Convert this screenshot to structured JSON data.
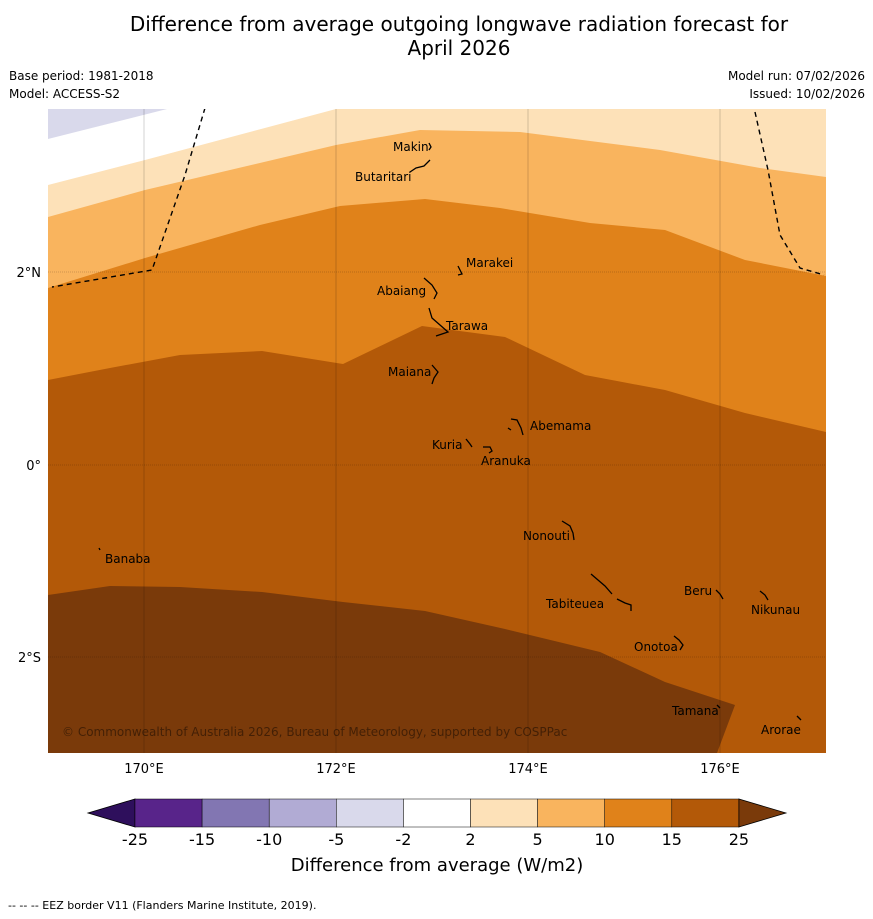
{
  "title_line1": "Difference from average outgoing longwave radiation forecast for",
  "title_line2": "April 2026",
  "base_period": "Base period: 1981-2018",
  "model": "Model: ACCESS-S2",
  "model_run": "Model run: 07/02/2026",
  "issued": "Issued: 10/02/2026",
  "copyright": "© Commonwealth of Australia 2026, Bureau of Meteorology, supported by COSPPac",
  "footnote": "-- -- -- EEZ border V11 (Flanders Marine Institute, 2019).",
  "axes": {
    "lon_labels": [
      "170°E",
      "172°E",
      "174°E",
      "176°E"
    ],
    "lat_labels": [
      "2°N",
      "0°",
      "2°S"
    ]
  },
  "places": [
    {
      "name": "Makin"
    },
    {
      "name": "Butaritari"
    },
    {
      "name": "Marakei"
    },
    {
      "name": "Abaiang"
    },
    {
      "name": "Tarawa"
    },
    {
      "name": "Maiana"
    },
    {
      "name": "Abemama"
    },
    {
      "name": "Kuria"
    },
    {
      "name": "Aranuka"
    },
    {
      "name": "Nonouti"
    },
    {
      "name": "Banaba"
    },
    {
      "name": "Beru"
    },
    {
      "name": "Tabiteuea"
    },
    {
      "name": "Nikunau"
    },
    {
      "name": "Onotoa"
    },
    {
      "name": "Tamana"
    },
    {
      "name": "Arorae"
    }
  ],
  "legend": {
    "title": "Difference from average (W/m2)",
    "ticks": [
      "-25",
      "-15",
      "-10",
      "-5",
      "-2",
      "2",
      "5",
      "10",
      "15",
      "25"
    ],
    "colors": [
      "#2e0f5c",
      "#58248a",
      "#8276b2",
      "#b1abd4",
      "#d9d9eb",
      "#ffffff",
      "#fde1b8",
      "#f9b45e",
      "#e0821a",
      "#b35908",
      "#7a3a0a"
    ]
  }
}
